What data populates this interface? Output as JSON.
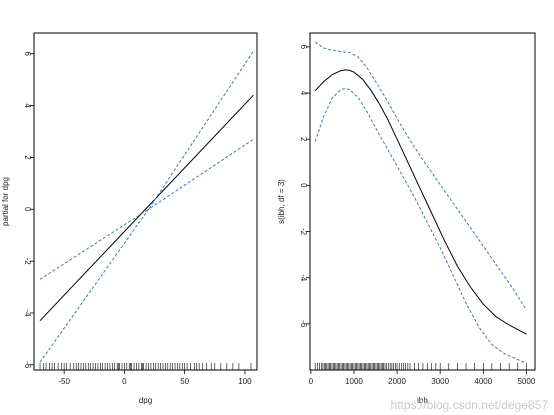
{
  "watermark": "https://blog.csdn.net/dege857",
  "chart_data": [
    {
      "type": "line",
      "xlabel": "dpg",
      "ylabel": "partial for dpg",
      "xlim": [
        -75,
        110
      ],
      "ylim": [
        -6.2,
        6.8
      ],
      "xticks": [
        -50,
        0,
        50,
        100
      ],
      "yticks": [
        -6,
        -4,
        -2,
        0,
        2,
        4,
        6
      ],
      "grid": false,
      "series": [
        {
          "role": "fit",
          "style": "solid",
          "color": "#000000",
          "x": [
            -70,
            107
          ],
          "y": [
            -4.3,
            4.4
          ]
        },
        {
          "role": "upper",
          "style": "dashed",
          "color": "#4a78a8",
          "x": [
            -70,
            20,
            107
          ],
          "y": [
            -2.7,
            0,
            6.1
          ]
        },
        {
          "role": "lower",
          "style": "dashed",
          "color": "#4a78a8",
          "x": [
            -70,
            20,
            107
          ],
          "y": [
            -5.9,
            0,
            2.7
          ]
        }
      ],
      "rug": [
        -70,
        -67,
        -65,
        -62,
        -60,
        -58,
        -55,
        -52,
        -50,
        -48,
        -45,
        -42,
        -40,
        -38,
        -36,
        -34,
        -32,
        -30,
        -28,
        -26,
        -24,
        -22,
        -20,
        -18,
        -16,
        -14,
        -12,
        -10,
        -8,
        -6,
        -5,
        -4,
        -2,
        0,
        2,
        4,
        5,
        6,
        8,
        10,
        12,
        14,
        15,
        16,
        18,
        20,
        22,
        24,
        26,
        28,
        30,
        32,
        34,
        36,
        38,
        40,
        42,
        44,
        46,
        48,
        50,
        52,
        55,
        58,
        60,
        62,
        65,
        68,
        72,
        75,
        80,
        85,
        90,
        95,
        105
      ]
    },
    {
      "type": "line",
      "xlabel": "ibh",
      "ylabel": "s(ibh, df = 3)",
      "xlim": [
        -20,
        5200
      ],
      "ylim": [
        -8.0,
        6.6
      ],
      "xticks": [
        0,
        1000,
        2000,
        3000,
        4000,
        5000
      ],
      "yticks": [
        -6,
        -4,
        -2,
        0,
        2,
        4,
        6
      ],
      "grid": false,
      "series": [
        {
          "role": "fit",
          "style": "solid",
          "color": "#000000",
          "x": [
            100,
            300,
            500,
            700,
            800,
            900,
            1000,
            1200,
            1400,
            1600,
            1800,
            2000,
            2200,
            2500,
            2800,
            3100,
            3400,
            3700,
            4000,
            4300,
            4600,
            5000
          ],
          "y": [
            4.1,
            4.5,
            4.8,
            4.97,
            5.0,
            4.98,
            4.9,
            4.6,
            4.1,
            3.5,
            2.8,
            2.0,
            1.2,
            0.0,
            -1.2,
            -2.4,
            -3.5,
            -4.4,
            -5.15,
            -5.7,
            -6.05,
            -6.45
          ]
        },
        {
          "role": "upper",
          "style": "dashed",
          "color": "#4a78a8",
          "x": [
            100,
            300,
            500,
            700,
            900,
            1100,
            1300,
            1500,
            1700,
            2000,
            2300,
            2600,
            2900,
            3200,
            3500,
            3800,
            4100,
            4400,
            4700,
            5000
          ],
          "y": [
            6.2,
            5.95,
            5.85,
            5.8,
            5.75,
            5.55,
            5.1,
            4.5,
            3.9,
            2.9,
            1.95,
            1.1,
            0.3,
            -0.5,
            -1.3,
            -2.1,
            -2.9,
            -3.7,
            -4.5,
            -5.4
          ]
        },
        {
          "role": "lower",
          "style": "dashed",
          "color": "#4a78a8",
          "x": [
            100,
            300,
            500,
            700,
            800,
            900,
            1100,
            1300,
            1500,
            1800,
            2100,
            2400,
            2700,
            3000,
            3300,
            3600,
            3900,
            4200,
            4500,
            4800,
            5000
          ],
          "y": [
            1.9,
            3.0,
            3.8,
            4.15,
            4.2,
            4.15,
            3.8,
            3.2,
            2.5,
            1.5,
            0.5,
            -0.5,
            -1.6,
            -2.7,
            -3.9,
            -5.1,
            -6.15,
            -6.9,
            -7.3,
            -7.55,
            -7.7
          ]
        }
      ],
      "rug": [
        100,
        150,
        200,
        250,
        280,
        310,
        340,
        370,
        400,
        430,
        460,
        490,
        520,
        550,
        580,
        610,
        640,
        670,
        700,
        730,
        760,
        790,
        820,
        850,
        880,
        910,
        940,
        970,
        1000,
        1030,
        1060,
        1090,
        1120,
        1150,
        1180,
        1210,
        1240,
        1270,
        1300,
        1330,
        1360,
        1390,
        1420,
        1450,
        1480,
        1510,
        1540,
        1570,
        1600,
        1630,
        1660,
        1690,
        1720,
        1760,
        1800,
        1840,
        1880,
        1920,
        1960,
        2000,
        2050,
        2100,
        2150,
        2200,
        2250,
        2300,
        2400,
        2500,
        2600,
        2700,
        2800,
        2900,
        3000,
        3200,
        3400,
        3600,
        3800,
        4000,
        4200,
        4400,
        4600,
        4800,
        5000
      ]
    }
  ]
}
